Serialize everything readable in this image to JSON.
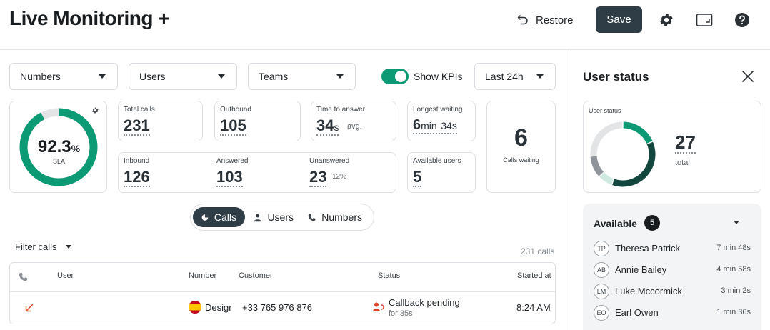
{
  "header": {
    "title": "Live Monitoring +",
    "restore_label": "Restore",
    "save_label": "Save"
  },
  "filters": {
    "numbers": "Numbers",
    "users": "Users",
    "teams": "Teams",
    "show_kpis_label": "Show KPIs",
    "show_kpis_on": true,
    "period": "Last 24h"
  },
  "sla": {
    "value": "92.3",
    "unit": "%",
    "label": "SLA",
    "fraction": 0.923
  },
  "kpis": {
    "total_calls": {
      "label": "Total calls",
      "value": "231"
    },
    "outbound": {
      "label": "Outbound",
      "value": "105"
    },
    "time_to_answer": {
      "label": "Time to answer",
      "value": "34",
      "unit": "s",
      "suffix": "avg."
    },
    "longest_waiting": {
      "label": "Longest waiting",
      "value_a": "6",
      "unit_a": "min",
      "value_b": "34",
      "unit_b": "s"
    },
    "inbound": {
      "label": "Inbound",
      "value": "126"
    },
    "answered": {
      "label": "Answered",
      "value": "103"
    },
    "unanswered": {
      "label": "Unanswered",
      "value": "23",
      "percent": "12%"
    },
    "available_users": {
      "label": "Available users",
      "value": "5"
    },
    "calls_waiting": {
      "label": "Calls waiting",
      "value": "6"
    }
  },
  "tabs": [
    {
      "label": "Calls",
      "active": true,
      "icon": "pie-chart-icon"
    },
    {
      "label": "Users",
      "active": false,
      "icon": "user-icon"
    },
    {
      "label": "Numbers",
      "active": false,
      "icon": "phone-icon"
    }
  ],
  "filter_calls_label": "Filter calls",
  "calls_count": "231 calls",
  "table": {
    "headers": [
      "User",
      "Number",
      "Customer",
      "Status",
      "Started at"
    ],
    "rows": [
      {
        "direction_icon": "missed-call-arrow-icon",
        "number": "Design",
        "customer": "+33 765 976 876",
        "status": "Callback pending",
        "status_sub": "for 35s",
        "started_at": "8:24 AM"
      }
    ]
  },
  "sidebar": {
    "title": "User status",
    "user_status_label": "User status",
    "total_value": "27",
    "total_label": "total",
    "donut": [
      {
        "status": "available",
        "value": 5,
        "color": "#0c9a74"
      },
      {
        "status": "busy",
        "value": 10,
        "color": "#14473d"
      },
      {
        "status": "pending",
        "value": 2,
        "color": "#cfe9e0"
      },
      {
        "status": "away",
        "value": 3,
        "color": "#8e9499"
      },
      {
        "status": "offline",
        "value": 7,
        "color": "#e2e4e6"
      }
    ],
    "available_title": "Available",
    "available_count": "5",
    "users": [
      {
        "initials": "TP",
        "name": "Theresa Patrick",
        "time": "7 min 48s"
      },
      {
        "initials": "AB",
        "name": "Annie Bailey",
        "time": "4 min 58s"
      },
      {
        "initials": "LM",
        "name": "Luke Mccormick",
        "time": "3 min 2s"
      },
      {
        "initials": "EO",
        "name": "Earl Owen",
        "time": "1 min 36s"
      }
    ]
  },
  "colors": {
    "accent": "#0c9a74",
    "dark": "#2f3e46",
    "missed": "#e0442a"
  }
}
